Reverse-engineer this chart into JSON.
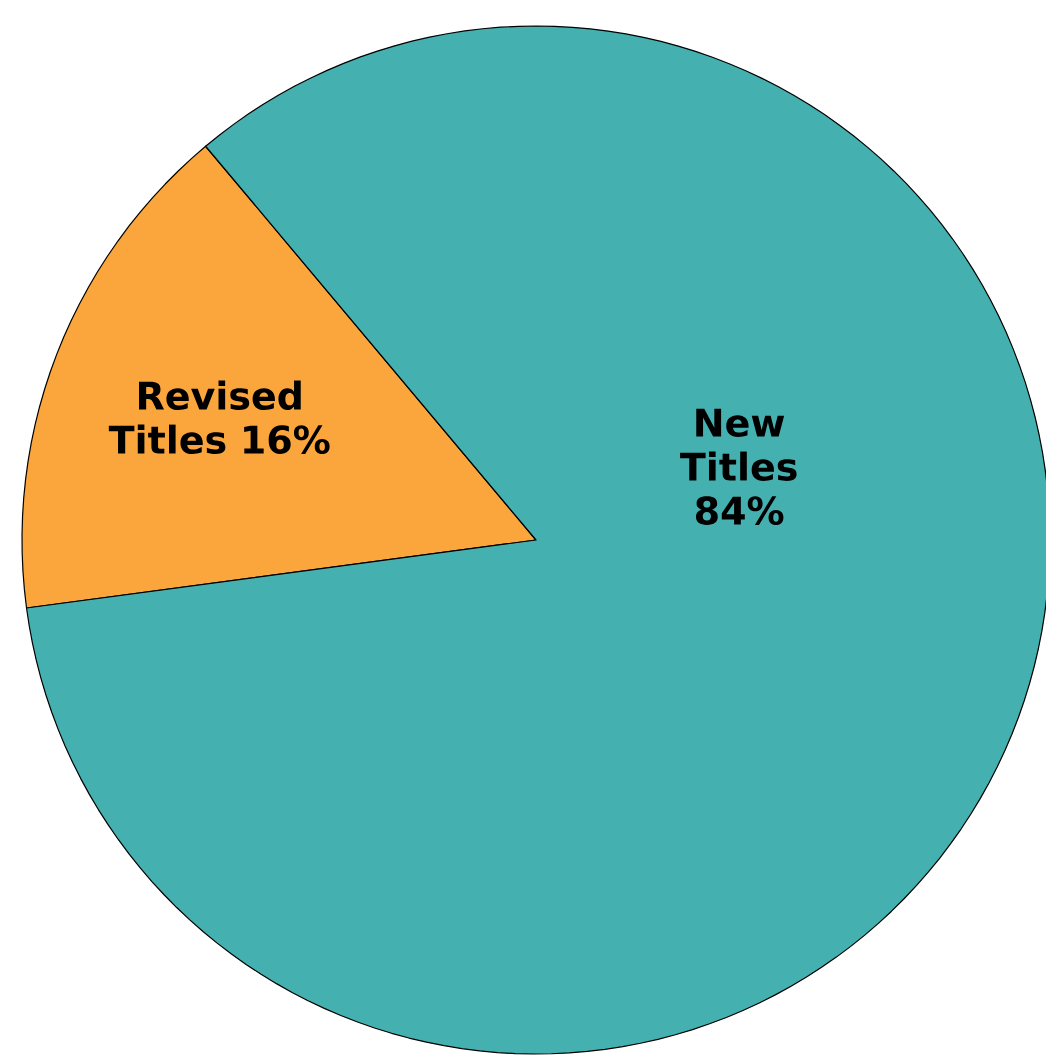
{
  "chart_data": {
    "type": "pie",
    "categories": [
      "Revised Titles",
      "New Titles"
    ],
    "values": [
      16,
      84
    ],
    "value_labels": [
      "16%",
      "84%"
    ],
    "colors": [
      "#fba63c",
      "#45b0b0"
    ]
  }
}
